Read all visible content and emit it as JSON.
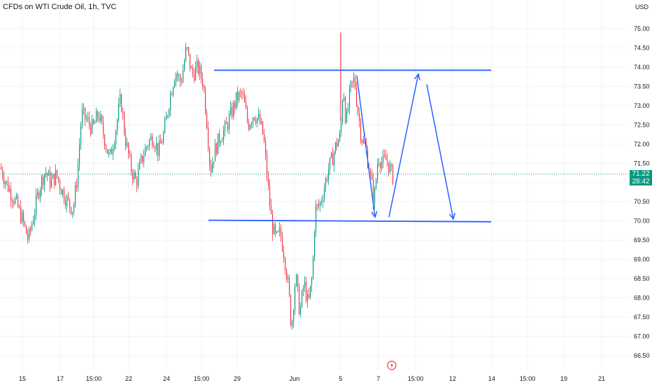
{
  "header": {
    "title": "CFDs on WTI Crude Oil, 1h, TVC",
    "currency": "USD"
  },
  "current_price": {
    "price": "71.22",
    "countdown": "28:42"
  },
  "chart_data": {
    "type": "candlestick",
    "title": "CFDs on WTI Crude Oil, 1h, TVC",
    "y_unit": "USD",
    "y_ticks": [
      "66.50",
      "67.00",
      "67.50",
      "68.00",
      "68.50",
      "69.00",
      "69.50",
      "70.00",
      "70.50",
      "71.00",
      "71.50",
      "72.00",
      "72.50",
      "73.00",
      "73.50",
      "74.00",
      "74.50",
      "75.00"
    ],
    "y_range": [
      66.2,
      75.5
    ],
    "x_ticks": [
      {
        "label": "15",
        "slot": 32
      },
      {
        "label": "17",
        "slot": 86
      },
      {
        "label": "15:00",
        "slot": 134
      },
      {
        "label": "22",
        "slot": 184
      },
      {
        "label": "24",
        "slot": 238
      },
      {
        "label": "15:00",
        "slot": 288
      },
      {
        "label": "29",
        "slot": 339
      },
      {
        "label": "Jun",
        "slot": 421
      },
      {
        "label": "5",
        "slot": 487
      },
      {
        "label": "7",
        "slot": 541
      },
      {
        "label": "15:00",
        "slot": 594
      },
      {
        "label": "12",
        "slot": 647
      },
      {
        "label": "14",
        "slot": 703
      },
      {
        "label": "15:00",
        "slot": 754
      },
      {
        "label": "19",
        "slot": 806
      },
      {
        "label": "21",
        "slot": 860
      }
    ],
    "last_price": 71.22,
    "price_path": [
      [
        0,
        71.4
      ],
      [
        8,
        71.0
      ],
      [
        16,
        70.7
      ],
      [
        24,
        70.4
      ],
      [
        32,
        70.0
      ],
      [
        40,
        69.5
      ],
      [
        48,
        70.2
      ],
      [
        56,
        70.9
      ],
      [
        64,
        71.3
      ],
      [
        72,
        71.0
      ],
      [
        80,
        71.2
      ],
      [
        88,
        70.8
      ],
      [
        96,
        70.5
      ],
      [
        104,
        70.3
      ],
      [
        110,
        71.2
      ],
      [
        116,
        72.8
      ],
      [
        124,
        72.6
      ],
      [
        132,
        72.4
      ],
      [
        140,
        72.8
      ],
      [
        148,
        72.2
      ],
      [
        156,
        71.6
      ],
      [
        164,
        72.3
      ],
      [
        172,
        73.2
      ],
      [
        178,
        72.2
      ],
      [
        186,
        71.4
      ],
      [
        194,
        71.0
      ],
      [
        202,
        71.6
      ],
      [
        210,
        72.0
      ],
      [
        218,
        72.2
      ],
      [
        226,
        71.8
      ],
      [
        234,
        72.3
      ],
      [
        242,
        73.2
      ],
      [
        250,
        73.9
      ],
      [
        258,
        73.6
      ],
      [
        266,
        74.5
      ],
      [
        274,
        73.8
      ],
      [
        282,
        74.0
      ],
      [
        290,
        73.6
      ],
      [
        296,
        72.4
      ],
      [
        300,
        71.3
      ],
      [
        306,
        71.8
      ],
      [
        314,
        72.2
      ],
      [
        322,
        72.4
      ],
      [
        330,
        72.8
      ],
      [
        338,
        73.2
      ],
      [
        346,
        73.3
      ],
      [
        354,
        72.5
      ],
      [
        362,
        72.8
      ],
      [
        370,
        72.6
      ],
      [
        376,
        72.2
      ],
      [
        382,
        71.0
      ],
      [
        388,
        69.9
      ],
      [
        394,
        69.5
      ],
      [
        400,
        69.7
      ],
      [
        406,
        69.1
      ],
      [
        412,
        68.2
      ],
      [
        416,
        67.2
      ],
      [
        422,
        68.6
      ],
      [
        428,
        67.6
      ],
      [
        434,
        68.4
      ],
      [
        440,
        67.8
      ],
      [
        446,
        68.6
      ],
      [
        450,
        70.3
      ],
      [
        456,
        70.4
      ],
      [
        462,
        70.8
      ],
      [
        468,
        71.3
      ],
      [
        474,
        71.6
      ],
      [
        480,
        72.0
      ],
      [
        486,
        72.2
      ],
      [
        490,
        73.6
      ],
      [
        494,
        72.5
      ],
      [
        500,
        73.4
      ],
      [
        506,
        73.7
      ],
      [
        510,
        73.0
      ],
      [
        516,
        72.2
      ],
      [
        522,
        71.9
      ],
      [
        528,
        71.3
      ],
      [
        534,
        70.5
      ],
      [
        540,
        71.7
      ],
      [
        546,
        71.5
      ],
      [
        552,
        71.6
      ],
      [
        558,
        71.3
      ],
      [
        562,
        71.1
      ]
    ],
    "candle_colors": {
      "up": "#089981",
      "down": "#f23645"
    },
    "wicks": [
      {
        "slot": 487,
        "high": 74.9,
        "low": 72.6
      }
    ],
    "drawings": {
      "resistance_line": {
        "from": [
          306,
          73.92
        ],
        "to": [
          702,
          73.92
        ]
      },
      "support_line": {
        "from": [
          298,
          70.02
        ],
        "to": [
          702,
          69.98
        ]
      },
      "projection": [
        [
          510,
          73.78
        ],
        [
          536,
          70.1
        ],
        [
          556,
          70.1
        ],
        [
          598,
          73.82
        ],
        [
          610,
          73.55
        ],
        [
          648,
          70.05
        ]
      ],
      "line_color": "#2962ff"
    },
    "grid": true,
    "legend": "none"
  }
}
